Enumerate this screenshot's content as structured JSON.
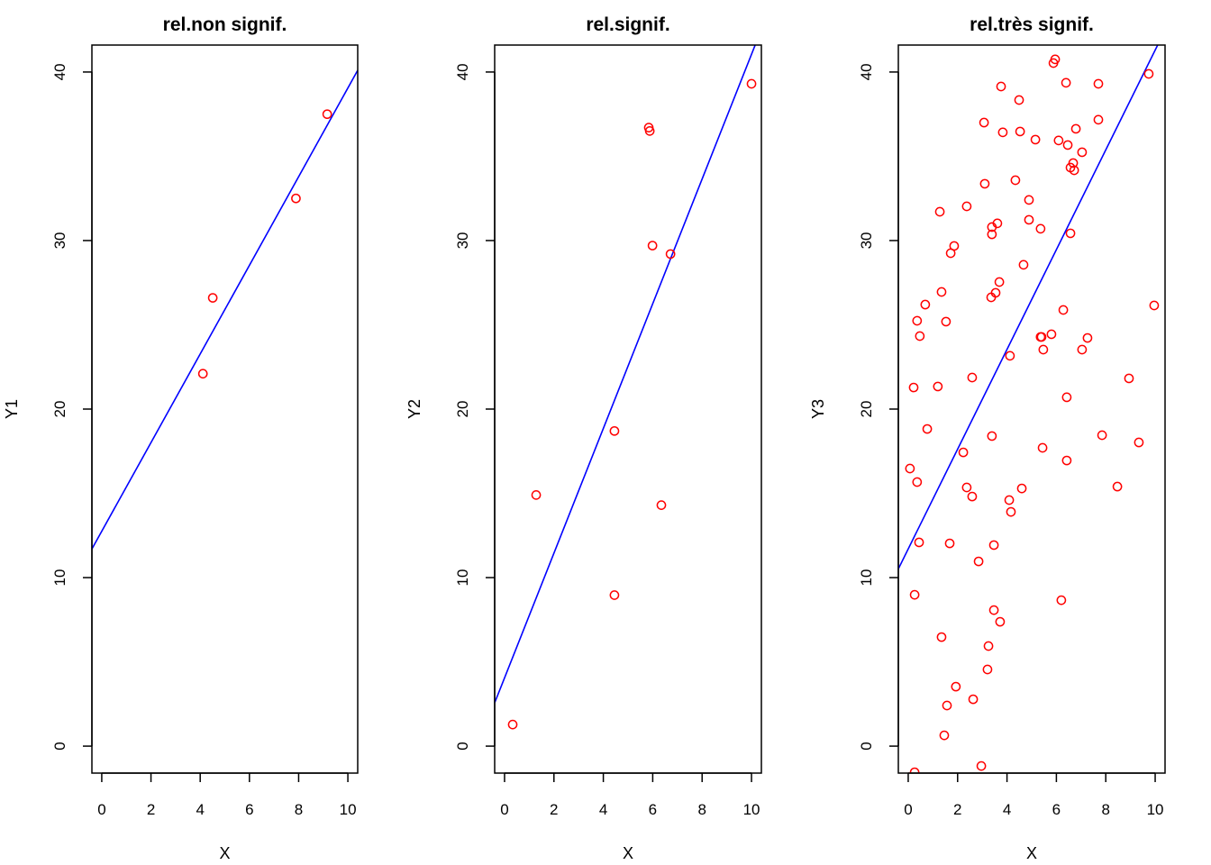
{
  "colors": {
    "points": "#ff0000",
    "line": "#0000ff",
    "axes": "#000000"
  },
  "chart_data": [
    {
      "type": "scatter",
      "title": "rel.non signif.",
      "xlabel": "X",
      "ylabel": "Y1",
      "xlim": [
        -0.4,
        10.4
      ],
      "ylim": [
        -1.6,
        41.6
      ],
      "xticks": [
        0,
        2,
        4,
        6,
        8,
        10
      ],
      "yticks": [
        0,
        10,
        20,
        30,
        40
      ],
      "points": [
        [
          4.51,
          26.6
        ],
        [
          4.11,
          22.1
        ],
        [
          7.89,
          32.5
        ],
        [
          9.16,
          37.5
        ]
      ],
      "regression_line": {
        "intercept": 12.75,
        "slope": 2.63
      }
    },
    {
      "type": "scatter",
      "title": "rel.signif.",
      "xlabel": "X",
      "ylabel": "Y2",
      "xlim": [
        -0.4,
        10.4
      ],
      "ylim": [
        -1.6,
        41.6
      ],
      "xticks": [
        0,
        2,
        4,
        6,
        8,
        10
      ],
      "yticks": [
        0,
        10,
        20,
        30,
        40
      ],
      "points": [
        [
          5.84,
          36.7
        ],
        [
          5.88,
          36.5
        ],
        [
          5.99,
          29.7
        ],
        [
          6.72,
          29.2
        ],
        [
          10.0,
          39.3
        ],
        [
          4.45,
          18.7
        ],
        [
          1.28,
          14.9
        ],
        [
          6.35,
          14.3
        ],
        [
          4.45,
          8.96
        ],
        [
          0.33,
          1.28
        ]
      ],
      "regression_line": {
        "intercept": 4.05,
        "slope": 3.7
      }
    },
    {
      "type": "scatter",
      "title": "rel.très signif.",
      "xlabel": "X",
      "ylabel": "Y3",
      "xlim": [
        -0.4,
        10.4
      ],
      "ylim": [
        -1.6,
        41.6
      ],
      "xticks": [
        0,
        2,
        4,
        6,
        8,
        10
      ],
      "yticks": [
        0,
        10,
        20,
        30,
        40
      ],
      "points": [
        [
          5.95,
          40.75
        ],
        [
          5.88,
          40.53
        ],
        [
          9.74,
          39.89
        ],
        [
          3.76,
          39.14
        ],
        [
          6.39,
          39.36
        ],
        [
          7.7,
          39.3
        ],
        [
          4.49,
          38.34
        ],
        [
          3.07,
          37.0
        ],
        [
          3.83,
          36.42
        ],
        [
          4.53,
          36.47
        ],
        [
          7.7,
          37.17
        ],
        [
          6.79,
          36.63
        ],
        [
          5.15,
          35.99
        ],
        [
          6.09,
          35.94
        ],
        [
          6.46,
          35.67
        ],
        [
          7.04,
          35.24
        ],
        [
          6.68,
          34.6
        ],
        [
          6.57,
          34.33
        ],
        [
          6.72,
          34.17
        ],
        [
          3.1,
          33.37
        ],
        [
          4.34,
          33.58
        ],
        [
          4.89,
          32.41
        ],
        [
          2.37,
          32.03
        ],
        [
          1.28,
          31.71
        ],
        [
          4.89,
          31.23
        ],
        [
          3.61,
          31.02
        ],
        [
          3.39,
          30.8
        ],
        [
          3.39,
          30.37
        ],
        [
          5.36,
          30.7
        ],
        [
          6.57,
          30.43
        ],
        [
          1.86,
          29.68
        ],
        [
          1.72,
          29.25
        ],
        [
          4.67,
          28.56
        ],
        [
          3.69,
          27.54
        ],
        [
          3.54,
          26.9
        ],
        [
          3.36,
          26.63
        ],
        [
          1.35,
          26.95
        ],
        [
          0.69,
          26.2
        ],
        [
          6.28,
          25.88
        ],
        [
          9.96,
          26.15
        ],
        [
          0.36,
          25.24
        ],
        [
          1.53,
          25.19
        ],
        [
          0.47,
          24.33
        ],
        [
          5.36,
          24.28
        ],
        [
          5.4,
          24.28
        ],
        [
          5.8,
          24.44
        ],
        [
          7.26,
          24.22
        ],
        [
          5.47,
          23.53
        ],
        [
          7.04,
          23.53
        ],
        [
          4.12,
          23.16
        ],
        [
          2.59,
          21.87
        ],
        [
          0.22,
          21.28
        ],
        [
          1.2,
          21.34
        ],
        [
          8.94,
          21.82
        ],
        [
          6.42,
          20.7
        ],
        [
          0.77,
          18.82
        ],
        [
          3.39,
          18.4
        ],
        [
          7.85,
          18.45
        ],
        [
          9.34,
          18.02
        ],
        [
          5.44,
          17.7
        ],
        [
          2.23,
          17.43
        ],
        [
          6.42,
          16.95
        ],
        [
          0.07,
          16.47
        ],
        [
          0.36,
          15.67
        ],
        [
          2.37,
          15.35
        ],
        [
          4.6,
          15.29
        ],
        [
          8.47,
          15.4
        ],
        [
          2.59,
          14.81
        ],
        [
          4.09,
          14.6
        ],
        [
          4.16,
          13.9
        ],
        [
          0.44,
          12.09
        ],
        [
          1.68,
          12.03
        ],
        [
          3.47,
          11.93
        ],
        [
          2.85,
          10.96
        ],
        [
          0.26,
          8.98
        ],
        [
          6.2,
          8.66
        ],
        [
          3.47,
          8.07
        ],
        [
          3.72,
          7.38
        ],
        [
          1.35,
          6.47
        ],
        [
          3.25,
          5.94
        ],
        [
          3.21,
          4.55
        ],
        [
          1.93,
          3.53
        ],
        [
          2.63,
          2.78
        ],
        [
          1.57,
          2.41
        ],
        [
          1.46,
          0.64
        ],
        [
          2.96,
          -1.18
        ],
        [
          0.26,
          -1.55
        ]
      ],
      "regression_line": {
        "intercept": 11.7,
        "slope": 2.96
      }
    }
  ]
}
